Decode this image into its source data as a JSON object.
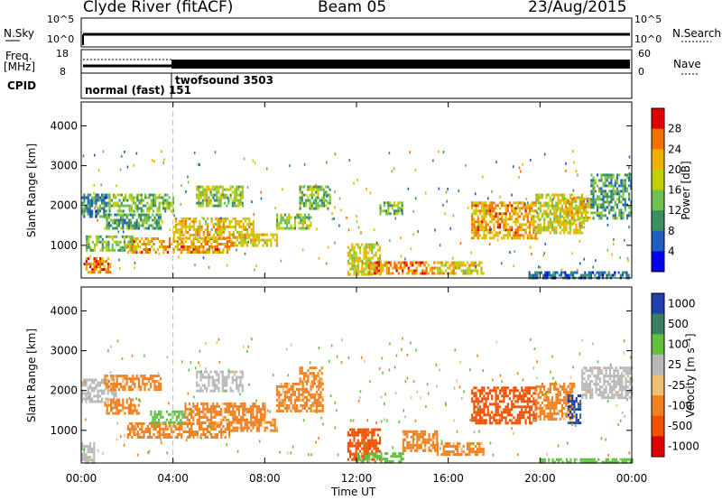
{
  "header": {
    "station": "Clyde River (fitACF)",
    "beam": "Beam 05",
    "date": "23/Aug/2015"
  },
  "top_panels": {
    "nsky_label": "N.Sky",
    "nsearch_label": "N.Search",
    "nsky_ticks": [
      "10^5",
      "10^0"
    ],
    "nsearch_ticks": [
      "10^5",
      "10^0"
    ],
    "freq_label_line1": "Freq.",
    "freq_label_line2": "[MHz]",
    "freq_ticks": [
      "18",
      "8"
    ],
    "nave_label": "Nave",
    "nave_ticks": [
      "60",
      "0"
    ],
    "cpid_label": "CPID",
    "cpid_modes": [
      {
        "text": "normal (fast) 151",
        "start_hour": 0
      },
      {
        "text": "twofsound 3503",
        "start_hour": 4
      }
    ]
  },
  "chart_data": [
    {
      "type": "heatmap",
      "ylabel": "Slant Range [km]",
      "xlabel": "Time UT",
      "x_ticks": [
        "00:00",
        "04:00",
        "08:00",
        "12:00",
        "16:00",
        "20:00",
        "00:00"
      ],
      "xlim_hours": [
        0,
        24
      ],
      "y_ticks": [
        "4000",
        "3000",
        "2000",
        "1000"
      ],
      "ylim": [
        180,
        4600
      ],
      "colorbar_label": "Power [dB]",
      "colorbar_ticks": [
        "28",
        "24",
        "20",
        "16",
        "12",
        "8",
        "4"
      ],
      "colorbar_colors": [
        "#e00000",
        "#f07000",
        "#f0b000",
        "#c0d000",
        "#70c050",
        "#3a9060",
        "#1e5ec0",
        "#0000f0"
      ],
      "regions": [
        {
          "t0": 0.0,
          "t1": 1.2,
          "r0": 1750,
          "r1": 2300,
          "v": 10
        },
        {
          "t0": 0.1,
          "t1": 1.3,
          "r0": 300,
          "r1": 700,
          "v": 24
        },
        {
          "t0": 0.2,
          "t1": 2.4,
          "r0": 900,
          "r1": 1250,
          "v": 14
        },
        {
          "t0": 1.2,
          "t1": 4.0,
          "r0": 1850,
          "r1": 2300,
          "v": 14
        },
        {
          "t0": 1.0,
          "t1": 3.5,
          "r0": 1450,
          "r1": 1800,
          "v": 12
        },
        {
          "t0": 2.0,
          "t1": 6.5,
          "r0": 850,
          "r1": 1200,
          "v": 22
        },
        {
          "t0": 4.0,
          "t1": 7.5,
          "r0": 1200,
          "r1": 1700,
          "v": 20
        },
        {
          "t0": 5.0,
          "t1": 7.0,
          "r0": 2000,
          "r1": 2500,
          "v": 16
        },
        {
          "t0": 6.5,
          "t1": 8.5,
          "r0": 1000,
          "r1": 1300,
          "v": 20
        },
        {
          "t0": 8.5,
          "t1": 10.0,
          "r0": 1400,
          "r1": 1800,
          "v": 16
        },
        {
          "t0": 9.5,
          "t1": 10.8,
          "r0": 1900,
          "r1": 2500,
          "v": 14
        },
        {
          "t0": 11.6,
          "t1": 13.0,
          "r0": 300,
          "r1": 1050,
          "v": 18
        },
        {
          "t0": 12.5,
          "t1": 15.5,
          "r0": 300,
          "r1": 600,
          "v": 24
        },
        {
          "t0": 15.5,
          "t1": 17.5,
          "r0": 300,
          "r1": 600,
          "v": 20
        },
        {
          "t0": 13.0,
          "t1": 14.0,
          "r0": 1800,
          "r1": 2100,
          "v": 14
        },
        {
          "t0": 17.0,
          "t1": 19.8,
          "r0": 1200,
          "r1": 2100,
          "v": 22
        },
        {
          "t0": 19.8,
          "t1": 21.8,
          "r0": 1300,
          "r1": 2300,
          "v": 18
        },
        {
          "t0": 21.0,
          "t1": 22.2,
          "r0": 1500,
          "r1": 2200,
          "v": 20
        },
        {
          "t0": 22.2,
          "t1": 24.0,
          "r0": 1700,
          "r1": 2800,
          "v": 12
        },
        {
          "t0": 19.5,
          "t1": 24.0,
          "r0": 200,
          "r1": 350,
          "v": 8
        }
      ]
    },
    {
      "type": "heatmap",
      "ylabel": "Slant Range [km]",
      "xlabel": "Time UT",
      "x_ticks": [
        "00:00",
        "04:00",
        "08:00",
        "12:00",
        "16:00",
        "20:00",
        "00:00"
      ],
      "xlim_hours": [
        0,
        24
      ],
      "y_ticks": [
        "4000",
        "3000",
        "2000",
        "1000"
      ],
      "ylim": [
        180,
        4600
      ],
      "colorbar_label": "Velocity [m s⁻¹]",
      "colorbar_ticks": [
        "1000",
        "500",
        "100",
        "25",
        "-25",
        "-100",
        "-500",
        "-1000"
      ],
      "colorbar_colors": [
        "#2040b0",
        "#3a8060",
        "#60c040",
        "#b8b8b8",
        "#f0c070",
        "#f08020",
        "#f05000",
        "#e00000"
      ],
      "regions": [
        {
          "t0": 0.0,
          "t1": 1.5,
          "r0": 1750,
          "r1": 2300,
          "v": 25
        },
        {
          "t0": 0.0,
          "t1": 0.6,
          "r0": 200,
          "r1": 700,
          "v": 25
        },
        {
          "t0": 1.0,
          "t1": 3.5,
          "r0": 2000,
          "r1": 2400,
          "v": -100
        },
        {
          "t0": 1.0,
          "t1": 2.5,
          "r0": 1400,
          "r1": 1800,
          "v": -100
        },
        {
          "t0": 2.0,
          "t1": 6.5,
          "r0": 850,
          "r1": 1200,
          "v": -100
        },
        {
          "t0": 3.0,
          "t1": 4.5,
          "r0": 1200,
          "r1": 1500,
          "v": 100
        },
        {
          "t0": 4.5,
          "t1": 8.0,
          "r0": 1200,
          "r1": 1700,
          "v": -100
        },
        {
          "t0": 5.0,
          "t1": 7.0,
          "r0": 2000,
          "r1": 2500,
          "v": 25
        },
        {
          "t0": 6.5,
          "t1": 8.5,
          "r0": 1000,
          "r1": 1300,
          "v": -100
        },
        {
          "t0": 8.5,
          "t1": 10.5,
          "r0": 1500,
          "r1": 2200,
          "v": -100
        },
        {
          "t0": 9.5,
          "t1": 10.5,
          "r0": 2200,
          "r1": 2600,
          "v": -100
        },
        {
          "t0": 11.6,
          "t1": 13.0,
          "r0": 300,
          "r1": 1050,
          "v": -500
        },
        {
          "t0": 12.0,
          "t1": 14.0,
          "r0": 200,
          "r1": 450,
          "v": 100
        },
        {
          "t0": 14.0,
          "t1": 15.5,
          "r0": 500,
          "r1": 1000,
          "v": -100
        },
        {
          "t0": 15.5,
          "t1": 17.5,
          "r0": 400,
          "r1": 700,
          "v": -100
        },
        {
          "t0": 17.0,
          "t1": 19.8,
          "r0": 1200,
          "r1": 2100,
          "v": -500
        },
        {
          "t0": 19.8,
          "t1": 21.5,
          "r0": 1300,
          "r1": 2200,
          "v": -100
        },
        {
          "t0": 21.2,
          "t1": 21.8,
          "r0": 1200,
          "r1": 1900,
          "v": 1000
        },
        {
          "t0": 21.8,
          "t1": 24.0,
          "r0": 1800,
          "r1": 2600,
          "v": 25
        },
        {
          "t0": 20.0,
          "t1": 24.0,
          "r0": 200,
          "r1": 300,
          "v": 100
        }
      ]
    }
  ]
}
